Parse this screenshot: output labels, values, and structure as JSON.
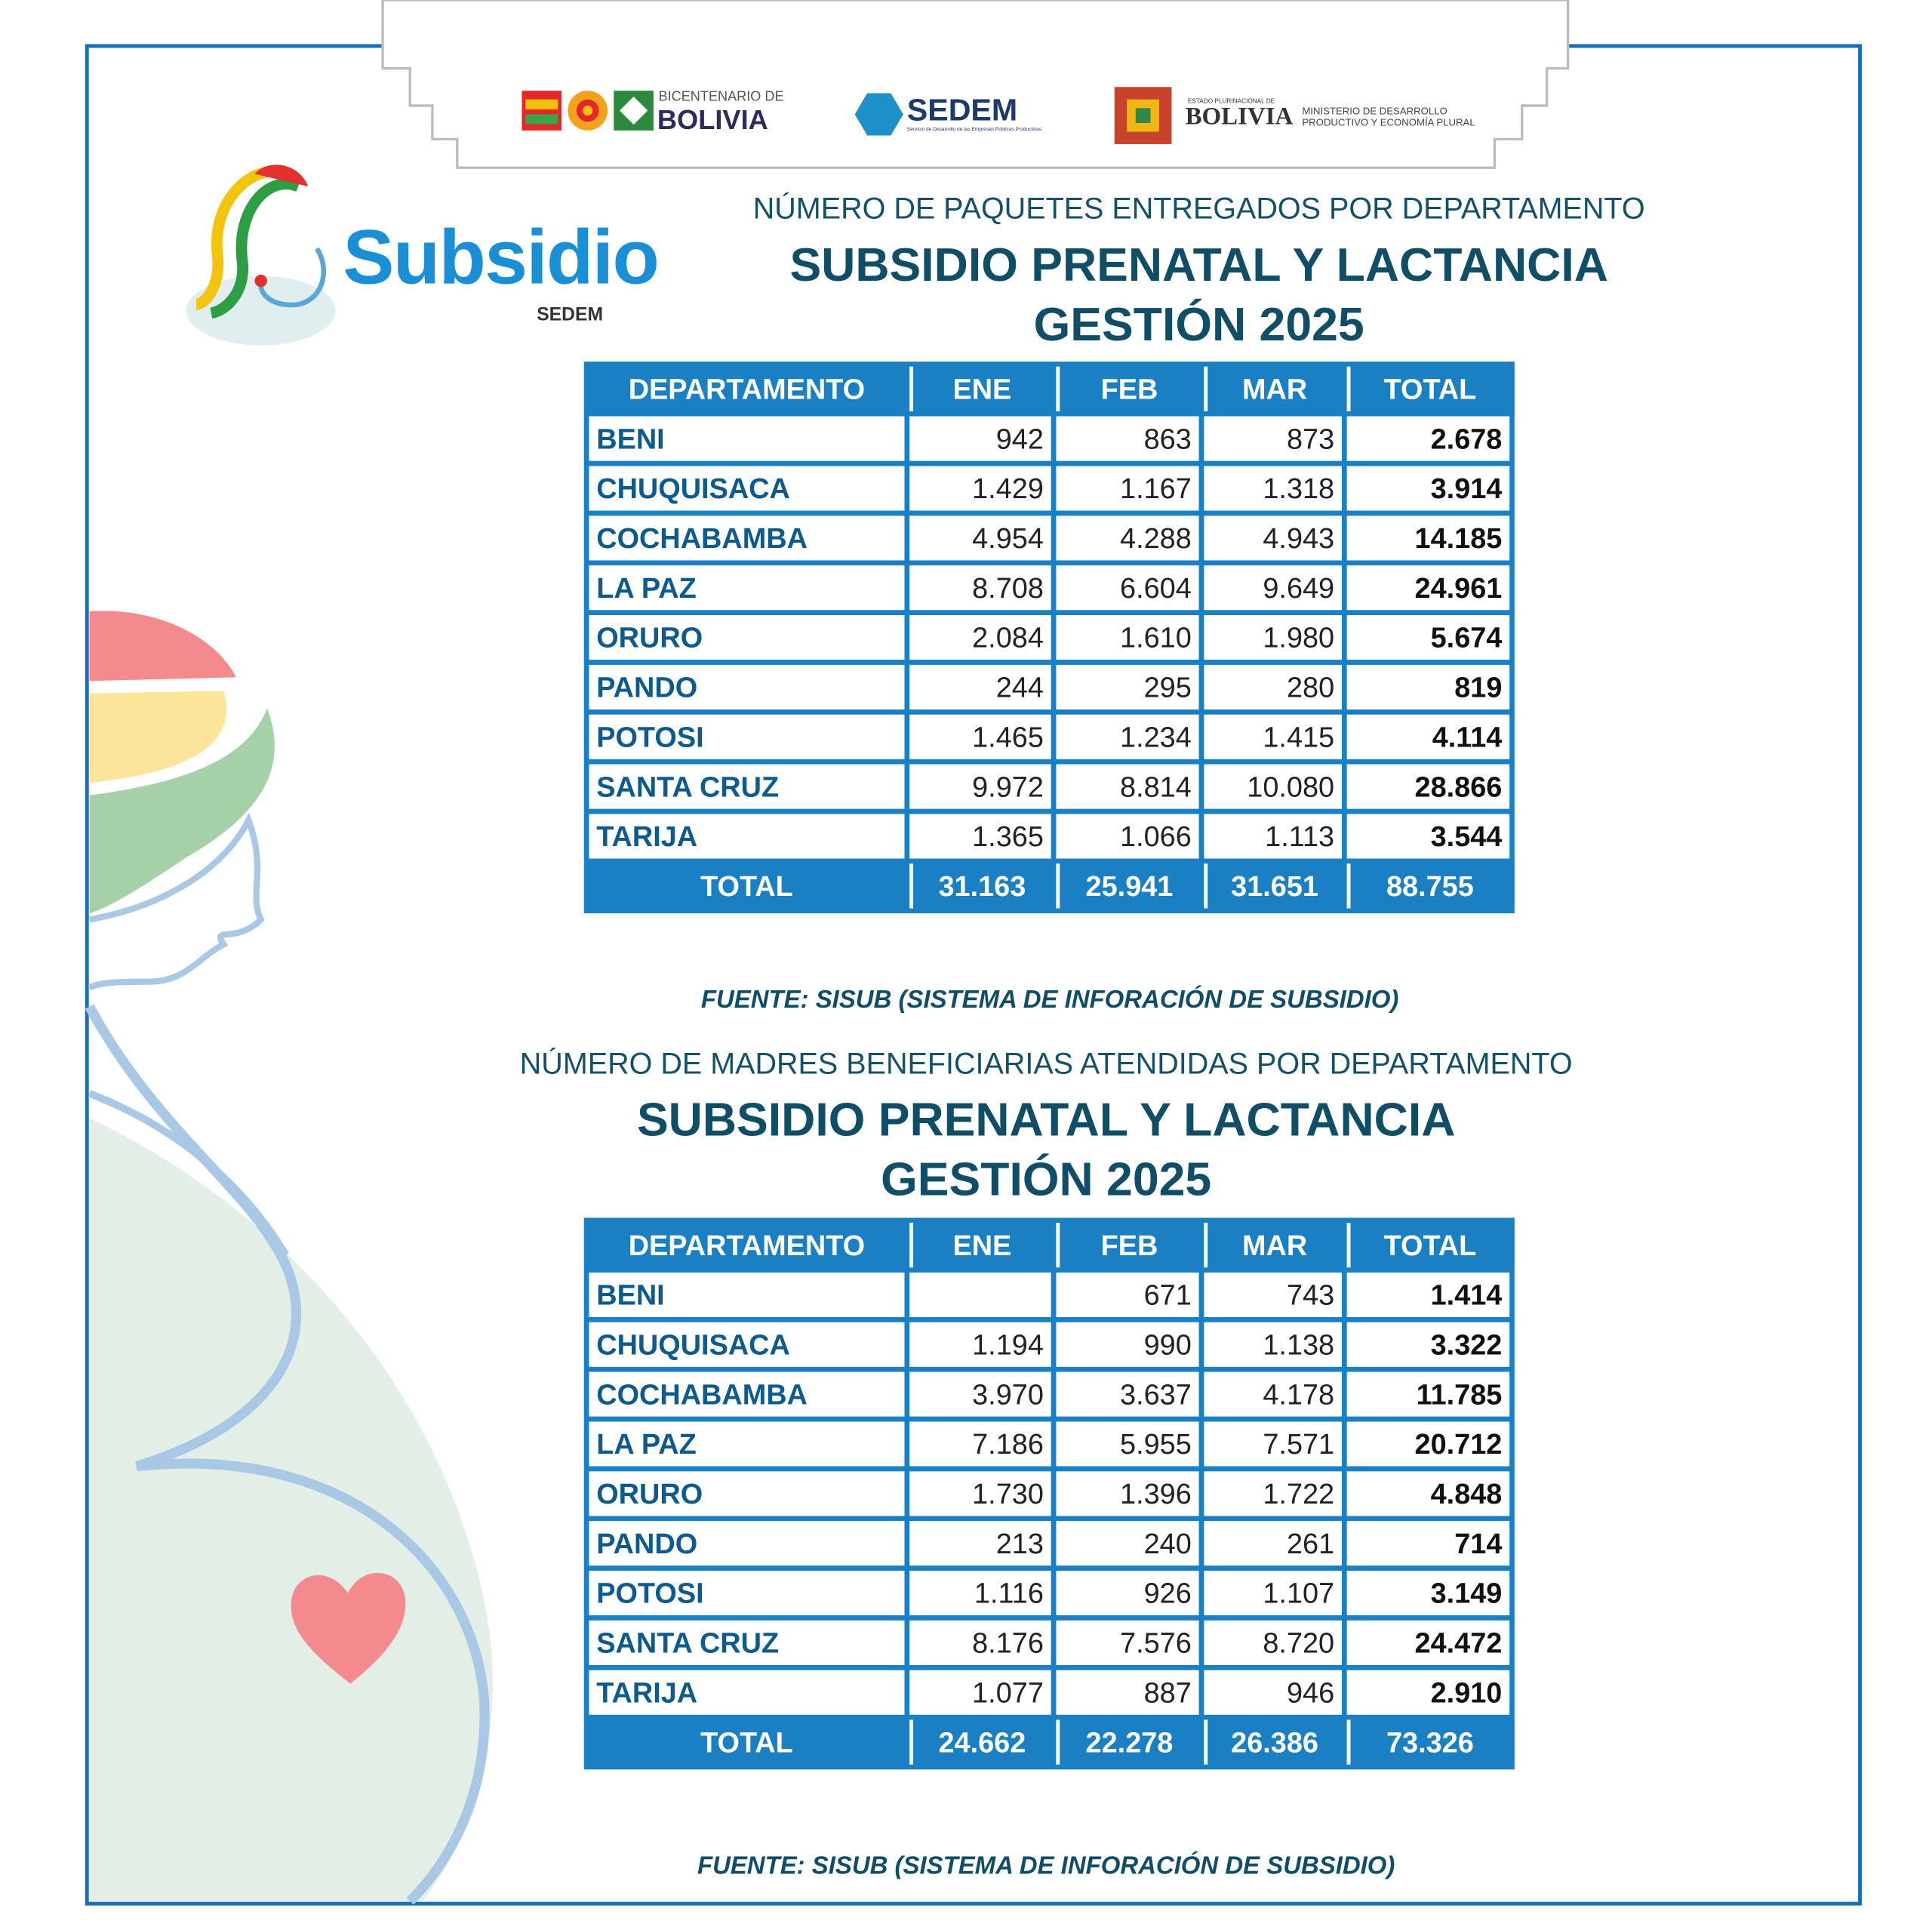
{
  "header": {
    "bicentenario_small": "BICENTENARIO DE",
    "bicentenario_big": "BOLIVIA",
    "sedem": "SEDEM",
    "sedem_tagline": "Servicio de Desarrollo de las Empresas Públicas Productivas",
    "estado_small": "ESTADO PLURINACIONAL DE",
    "estado_big": "BOLIVIA",
    "ministerio_line1": "MINISTERIO DE DESARROLLO",
    "ministerio_line2": "PRODUCTIVO Y ECONOMÍA PLURAL"
  },
  "logo": {
    "name": "Subsidio",
    "brand": "SEDEM"
  },
  "tables": [
    {
      "subtitle": "NÚMERO DE PAQUETES ENTREGADOS POR DEPARTAMENTO",
      "title_line1": "SUBSIDIO PRENATAL Y LACTANCIA",
      "title_line2": "GESTIÓN 2025",
      "columns": [
        "DEPARTAMENTO",
        "ENE",
        "FEB",
        "MAR",
        "TOTAL"
      ],
      "rows": [
        [
          "BENI",
          "942",
          "863",
          "873",
          "2.678"
        ],
        [
          "CHUQUISACA",
          "1.429",
          "1.167",
          "1.318",
          "3.914"
        ],
        [
          "COCHABAMBA",
          "4.954",
          "4.288",
          "4.943",
          "14.185"
        ],
        [
          "LA PAZ",
          "8.708",
          "6.604",
          "9.649",
          "24.961"
        ],
        [
          "ORURO",
          "2.084",
          "1.610",
          "1.980",
          "5.674"
        ],
        [
          "PANDO",
          "244",
          "295",
          "280",
          "819"
        ],
        [
          "POTOSI",
          "1.465",
          "1.234",
          "1.415",
          "4.114"
        ],
        [
          "SANTA CRUZ",
          "9.972",
          "8.814",
          "10.080",
          "28.866"
        ],
        [
          "TARIJA",
          "1.365",
          "1.066",
          "1.113",
          "3.544"
        ]
      ],
      "total": [
        "TOTAL",
        "31.163",
        "25.941",
        "31.651",
        "88.755"
      ],
      "source": "FUENTE: SISUB (SISTEMA DE INFORACIÓN DE SUBSIDIO)"
    },
    {
      "subtitle": "NÚMERO DE MADRES BENEFICIARIAS ATENDIDAS POR DEPARTAMENTO",
      "title_line1": "SUBSIDIO PRENATAL Y LACTANCIA",
      "title_line2": "GESTIÓN 2025",
      "columns": [
        "DEPARTAMENTO",
        "ENE",
        "FEB",
        "MAR",
        "TOTAL"
      ],
      "rows": [
        [
          "BENI",
          null,
          "671",
          "743",
          "1.414"
        ],
        [
          "CHUQUISACA",
          "1.194",
          "990",
          "1.138",
          "3.322"
        ],
        [
          "COCHABAMBA",
          "3.970",
          "3.637",
          "4.178",
          "11.785"
        ],
        [
          "LA PAZ",
          "7.186",
          "5.955",
          "7.571",
          "20.712"
        ],
        [
          "ORURO",
          "1.730",
          "1.396",
          "1.722",
          "4.848"
        ],
        [
          "PANDO",
          "213",
          "240",
          "261",
          "714"
        ],
        [
          "POTOSI",
          "1.116",
          "926",
          "1.107",
          "3.149"
        ],
        [
          "SANTA CRUZ",
          "8.176",
          "7.576",
          "8.720",
          "24.472"
        ],
        [
          "TARIJA",
          "1.077",
          "887",
          "946",
          "2.910"
        ]
      ],
      "total": [
        "TOTAL",
        "24.662",
        "22.278",
        "26.386",
        "73.326"
      ],
      "source": "FUENTE: SISUB (SISTEMA DE INFORACIÓN DE SUBSIDIO)"
    }
  ]
}
